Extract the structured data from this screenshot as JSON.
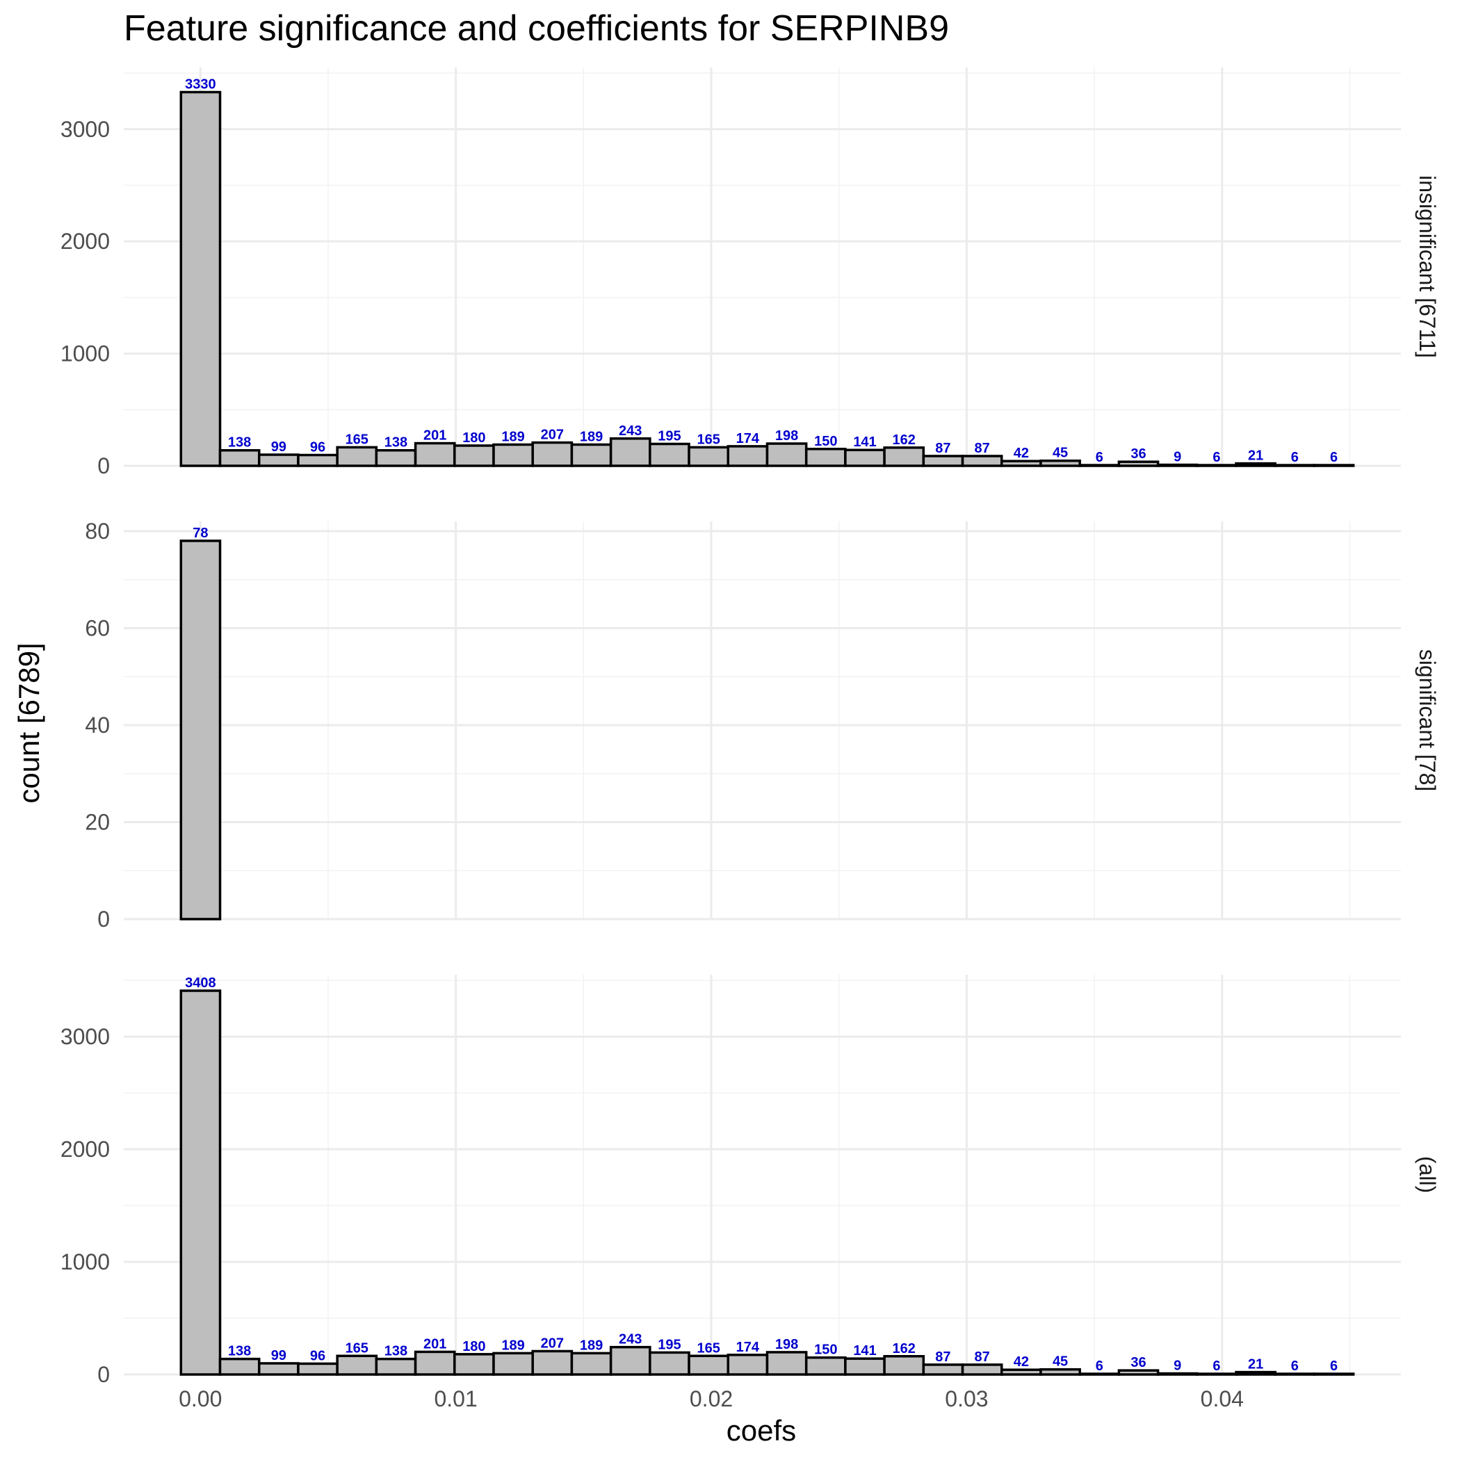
{
  "chart_data": {
    "type": "bar",
    "title": "Feature significance and coefficients for SERPINB9",
    "xlabel": "coefs",
    "ylabel": "count [6789]",
    "xlim": [
      -0.003,
      0.047
    ],
    "x_ticks": [
      0.0,
      0.01,
      0.02,
      0.03,
      0.04
    ],
    "x_tick_labels": [
      "0.00",
      "0.01",
      "0.02",
      "0.03",
      "0.04"
    ],
    "bin_start": -0.00076,
    "bin_width": 0.00153,
    "grid": true,
    "colors": {
      "bar_fill": "#bebebe",
      "bar_stroke": "#000000",
      "label": "#0000cd"
    },
    "panels": [
      {
        "strip": "insignificant [6711]",
        "ylim": [
          0,
          3550
        ],
        "y_ticks": [
          0,
          1000,
          2000,
          3000
        ],
        "y_tick_labels": [
          "0",
          "1000",
          "2000",
          "3000"
        ],
        "values": [
          3330,
          138,
          99,
          96,
          165,
          138,
          201,
          180,
          189,
          207,
          189,
          243,
          195,
          165,
          174,
          198,
          150,
          141,
          162,
          87,
          87,
          42,
          45,
          6,
          36,
          9,
          6,
          21,
          6,
          6
        ],
        "labels": [
          "3330",
          "138",
          "99",
          "96",
          "165",
          "138",
          "201",
          "180",
          "189",
          "207",
          "189",
          "243",
          "195",
          "165",
          "174",
          "198",
          "150",
          "141",
          "162",
          "87",
          "87",
          "42",
          "45",
          "6",
          "36",
          "9",
          "6",
          "21",
          "6",
          "6"
        ]
      },
      {
        "strip": "significant [78]",
        "ylim": [
          0,
          82
        ],
        "y_ticks": [
          0,
          20,
          40,
          60,
          80
        ],
        "y_tick_labels": [
          "0",
          "20",
          "40",
          "60",
          "80"
        ],
        "values": [
          78,
          0,
          0,
          0,
          0,
          0,
          0,
          0,
          0,
          0,
          0,
          0,
          0,
          0,
          0,
          0,
          0,
          0,
          0,
          0,
          0,
          0,
          0,
          0,
          0,
          0,
          0,
          0,
          0,
          0
        ],
        "labels": [
          "78",
          "",
          "",
          "",
          "",
          "",
          "",
          "",
          "",
          "",
          "",
          "",
          "",
          "",
          "",
          "",
          "",
          "",
          "",
          "",
          "",
          "",
          "",
          "",
          "",
          "",
          "",
          "",
          "",
          ""
        ]
      },
      {
        "strip": "(all)",
        "ylim": [
          0,
          3550
        ],
        "y_ticks": [
          0,
          1000,
          2000,
          3000
        ],
        "y_tick_labels": [
          "0",
          "1000",
          "2000",
          "3000"
        ],
        "values": [
          3408,
          138,
          99,
          96,
          165,
          138,
          201,
          180,
          189,
          207,
          189,
          243,
          195,
          165,
          174,
          198,
          150,
          141,
          162,
          87,
          87,
          42,
          45,
          6,
          36,
          9,
          6,
          21,
          6,
          6
        ],
        "labels": [
          "3408",
          "138",
          "99",
          "96",
          "165",
          "138",
          "201",
          "180",
          "189",
          "207",
          "189",
          "243",
          "195",
          "165",
          "174",
          "198",
          "150",
          "141",
          "162",
          "87",
          "87",
          "42",
          "45",
          "6",
          "36",
          "9",
          "6",
          "21",
          "6",
          "6"
        ]
      }
    ]
  }
}
